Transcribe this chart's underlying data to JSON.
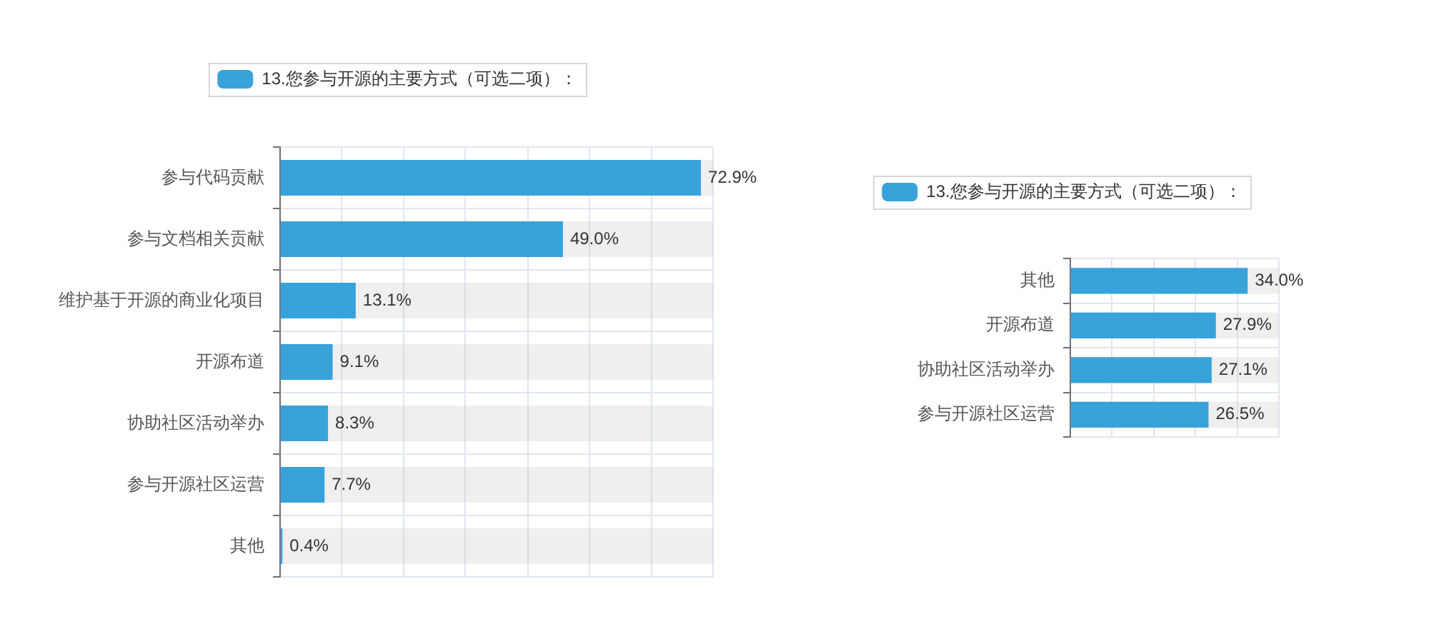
{
  "chart_data": [
    {
      "type": "bar",
      "orientation": "horizontal",
      "categories": [
        "参与代码贡献",
        "参与文档相关贡献",
        "维护基于开源的商业化项目",
        "开源布道",
        "协助社区活动举办",
        "参与开源社区运营",
        "其他"
      ],
      "series": [
        {
          "name": "13.您参与开源的主要方式（可选二项）：",
          "color": "#38a2db",
          "values": [
            72.9,
            49.0,
            13.1,
            9.1,
            8.3,
            7.7,
            0.4
          ],
          "value_labels": [
            "72.9%",
            "49.0%",
            "13.1%",
            "9.1%",
            "8.3%",
            "7.7%",
            "0.4%"
          ]
        }
      ],
      "xlim": [
        0,
        75
      ],
      "xticks": [
        {
          "value": 0,
          "label": null
        },
        {
          "value": 10.7,
          "label": null
        },
        {
          "value": 21.4,
          "label": null
        },
        {
          "value": 32.1,
          "label": null
        },
        {
          "value": 42.9,
          "label": null
        },
        {
          "value": 53.6,
          "label": null
        },
        {
          "value": 64.3,
          "label": null
        },
        {
          "value": 75,
          "label": null
        }
      ],
      "grid": true,
      "legend": "top",
      "tick_labels": "y"
    },
    {
      "type": "bar",
      "orientation": "horizontal",
      "categories": [
        "其他",
        "开源布道",
        "协助社区活动举办",
        "参与开源社区运营"
      ],
      "series": [
        {
          "name": "13.您参与开源的主要方式（可选二项）：",
          "color": "#38a2db",
          "values": [
            34.0,
            27.9,
            27.1,
            26.5
          ],
          "value_labels": [
            "34.0%",
            "27.9%",
            "27.1%",
            "26.5%"
          ]
        }
      ],
      "xlim": [
        0,
        40
      ],
      "xticks": [
        {
          "value": 0,
          "label": null
        },
        {
          "value": 8,
          "label": null
        },
        {
          "value": 16,
          "label": null
        },
        {
          "value": 24,
          "label": null
        },
        {
          "value": 32,
          "label": null
        },
        {
          "value": 40,
          "label": null
        }
      ],
      "grid": true,
      "legend": "top",
      "tick_labels": "y"
    }
  ]
}
